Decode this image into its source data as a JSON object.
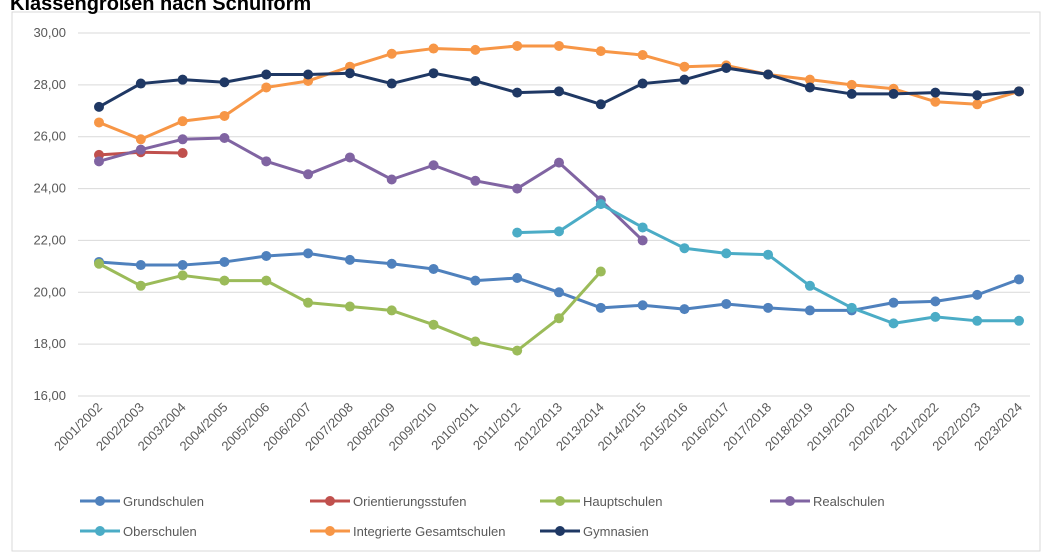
{
  "chart_data": {
    "type": "line",
    "title": "Klassengrößen nach Schulform",
    "categories": [
      "2001/2002",
      "2002/2003",
      "2003/2004",
      "2004/2005",
      "2005/2006",
      "2006/2007",
      "2007/2008",
      "2008/2009",
      "2009/2010",
      "2010/2011",
      "2011/2012",
      "2012/2013",
      "2013/2014",
      "2014/2015",
      "2015/2016",
      "2016/2017",
      "2017/2018",
      "2018/2019",
      "2019/2020",
      "2020/2021",
      "2021/2022",
      "2022/2023",
      "2023/2024"
    ],
    "series": [
      {
        "name": "Grundschulen",
        "color": "#4f81bd",
        "values": [
          21.17,
          21.05,
          21.05,
          21.17,
          21.4,
          21.5,
          21.25,
          21.1,
          20.9,
          20.45,
          20.55,
          20.0,
          19.4,
          19.5,
          19.35,
          19.55,
          19.4,
          19.3,
          19.3,
          19.6,
          19.65,
          19.9,
          20.5
        ]
      },
      {
        "name": "Orientierungsstufen",
        "color": "#c0504d",
        "values": [
          25.3,
          25.4,
          25.37,
          null,
          null,
          null,
          null,
          null,
          null,
          null,
          null,
          null,
          null,
          null,
          null,
          null,
          null,
          null,
          null,
          null,
          null,
          null,
          null
        ]
      },
      {
        "name": "Hauptschulen",
        "color": "#9bbb59",
        "values": [
          21.1,
          20.25,
          20.65,
          20.45,
          20.45,
          19.6,
          19.45,
          19.3,
          18.75,
          18.1,
          17.75,
          19.0,
          20.8,
          null,
          null,
          null,
          null,
          null,
          null,
          null,
          null,
          null,
          null
        ]
      },
      {
        "name": "Realschulen",
        "color": "#8064a2",
        "values": [
          25.05,
          25.5,
          25.9,
          25.95,
          25.05,
          24.55,
          25.2,
          24.35,
          24.9,
          24.3,
          24.0,
          25.0,
          23.55,
          22.0,
          null,
          null,
          null,
          null,
          null,
          null,
          null,
          null,
          null
        ]
      },
      {
        "name": "Oberschulen",
        "color": "#4bacc6",
        "values": [
          null,
          null,
          null,
          null,
          null,
          null,
          null,
          null,
          null,
          null,
          22.3,
          22.35,
          23.4,
          22.5,
          21.7,
          21.5,
          21.45,
          20.25,
          19.4,
          18.8,
          19.05,
          18.9,
          18.9
        ]
      },
      {
        "name": "Integrierte Gesamtschulen",
        "color": "#f79646",
        "values": [
          26.55,
          25.9,
          26.6,
          26.8,
          27.9,
          28.15,
          28.7,
          29.2,
          29.4,
          29.35,
          29.5,
          29.5,
          29.3,
          29.15,
          28.7,
          28.75,
          28.4,
          28.2,
          28.0,
          27.85,
          27.35,
          27.25,
          27.75
        ]
      },
      {
        "name": "Gymnasien",
        "color": "#1f3864",
        "values": [
          27.15,
          28.05,
          28.2,
          28.1,
          28.4,
          28.4,
          28.45,
          28.05,
          28.45,
          28.15,
          27.7,
          27.75,
          27.25,
          28.05,
          28.2,
          28.65,
          28.4,
          27.9,
          27.65,
          27.65,
          27.7,
          27.6,
          27.75
        ]
      }
    ],
    "ylim": [
      16,
      30
    ],
    "yticks": [
      {
        "value": 16,
        "label": "16,00"
      },
      {
        "value": 18,
        "label": "18,00"
      },
      {
        "value": 20,
        "label": "20,00"
      },
      {
        "value": 22,
        "label": "22,00"
      },
      {
        "value": 24,
        "label": "24,00"
      },
      {
        "value": 26,
        "label": "26,00"
      },
      {
        "value": 28,
        "label": "28,00"
      },
      {
        "value": 30,
        "label": "30,00"
      }
    ],
    "grid": true,
    "legend": "bottom"
  }
}
